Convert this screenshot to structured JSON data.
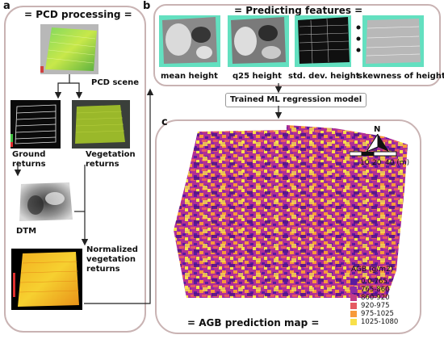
{
  "panel_a": {
    "letter": "a",
    "title": "= PCD processing =",
    "pcd_scene": "PCD scene",
    "ground_returns": "Ground returns",
    "vegetation_returns": "Vegetation returns",
    "dtm": "DTM",
    "normalized": "Normalized vegetation returns"
  },
  "panel_b": {
    "letter": "b",
    "title": "= Predicting features =",
    "features": [
      "mean height",
      "q25 height",
      "std. dev. height",
      "skewness of height"
    ]
  },
  "model_label": "Trained ML regression model",
  "panel_c": {
    "letter": "c",
    "title": "= AGB prediction map =",
    "north": "N",
    "scale_ticks": [
      "10",
      "20",
      "40 (m)"
    ],
    "legend_title": "AGB (g/m2)",
    "legend": [
      {
        "label": "0.0-765",
        "color": "#5a1aa0"
      },
      {
        "label": "765-860",
        "color": "#8e2aa6"
      },
      {
        "label": "860-920",
        "color": "#c13a88"
      },
      {
        "label": "920-975",
        "color": "#e55a62"
      },
      {
        "label": "975-1025",
        "color": "#f79a3a"
      },
      {
        "label": "1025-1080",
        "color": "#f8e04a"
      }
    ]
  },
  "colors": {
    "panel_border": "#c9b3b3",
    "feature_bg": "#63e0c0",
    "veg_green": "#9ab82a",
    "arrow": "#222222"
  }
}
